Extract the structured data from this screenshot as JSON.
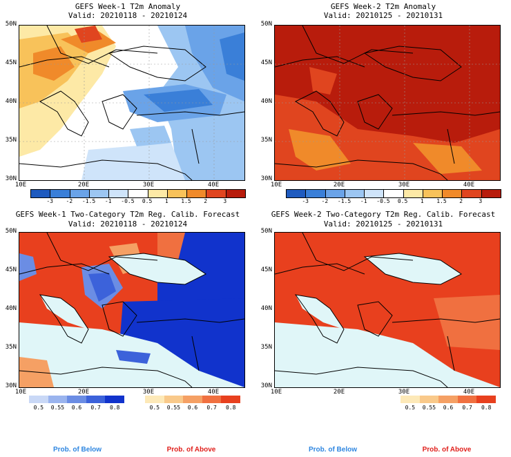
{
  "panels": [
    {
      "title": "GEFS Week-1 T2m Anomaly",
      "valid": "Valid: 20210118 - 20210124"
    },
    {
      "title": "GEFS Week-2 T2m Anomaly",
      "valid": "Valid: 20210125 - 20210131"
    },
    {
      "title": "GEFS Week-1 Two-Category T2m Reg. Calib. Forecast",
      "valid": "Valid: 20210118 - 20210124"
    },
    {
      "title": "GEFS Week-2 Two-Category T2m Reg. Calib. Forecast",
      "valid": "Valid: 20210125 - 20210131"
    }
  ],
  "lat_labels": [
    "50N",
    "45N",
    "40N",
    "35N",
    "30N"
  ],
  "lon_labels": [
    "10E",
    "20E",
    "30E",
    "40E"
  ],
  "anomaly_scale": {
    "labels": [
      "-3",
      "-2",
      "-1.5",
      "-1",
      "-0.5",
      "0.5",
      "1",
      "1.5",
      "2",
      "3"
    ],
    "colors": [
      "#1f5bbf",
      "#3a7fd8",
      "#6aa3e8",
      "#9cc6f2",
      "#cfe4fa",
      "#ffffff",
      "#fde9a6",
      "#f8c25a",
      "#f08a2a",
      "#e0451f",
      "#b81c0c"
    ]
  },
  "prob_below": {
    "labels": [
      "0.5",
      "0.55",
      "0.6",
      "0.7",
      "0.8"
    ],
    "colors": [
      "#c9d8f6",
      "#9ab4ee",
      "#6b8de4",
      "#3c62da",
      "#1133cc"
    ]
  },
  "prob_above": {
    "labels": [
      "0.5",
      "0.55",
      "0.6",
      "0.7",
      "0.8"
    ],
    "colors": [
      "#fde9b8",
      "#f9c98a",
      "#f5a064",
      "#f07040",
      "#e8401e"
    ]
  },
  "footer": {
    "below": "Prob. of Below",
    "above": "Prob. of Above"
  }
}
